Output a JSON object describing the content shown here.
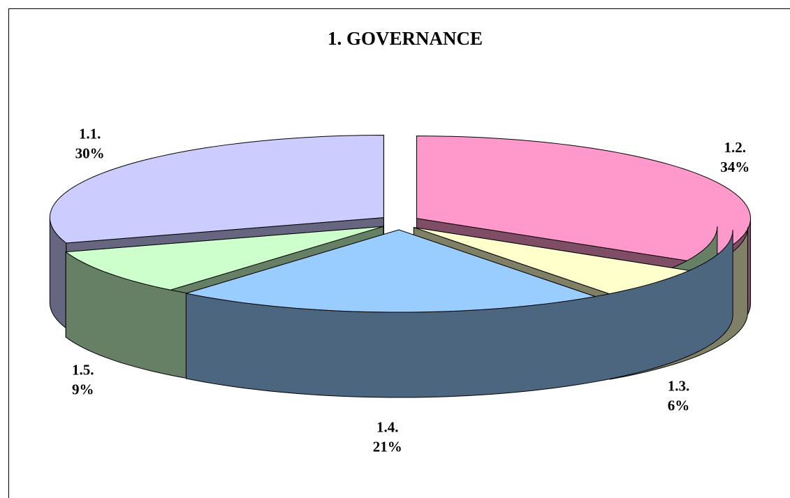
{
  "chart_data": {
    "type": "pie",
    "title": "1. GOVERNANCE",
    "categories": [
      "1.1.",
      "1.2.",
      "1.3.",
      "1.4.",
      "1.5."
    ],
    "values": [
      30,
      34,
      6,
      21,
      9
    ],
    "value_labels": [
      "30%",
      "34%",
      "6%",
      "21%",
      "9%"
    ],
    "colors": [
      "#ccccff",
      "#ff99cc",
      "#ffffcc",
      "#99ccff",
      "#ccffcc"
    ]
  }
}
